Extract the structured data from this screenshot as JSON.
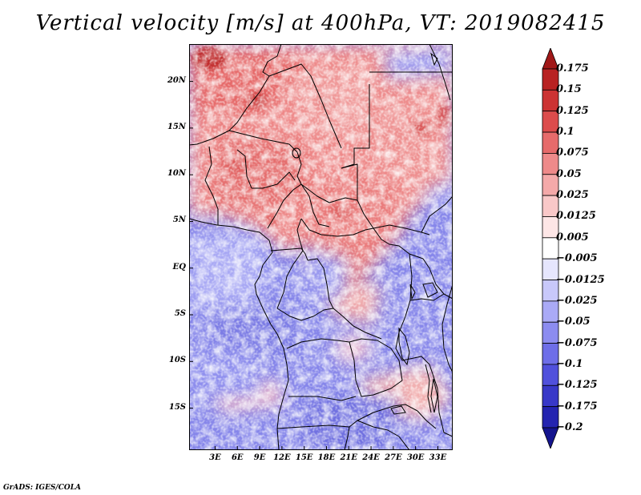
{
  "title": "Vertical velocity [m/s] at 400hPa, VT: 2019082415",
  "credit": "GrADS: IGES/COLA",
  "map": {
    "lon_range": [
      -0.5,
      35
    ],
    "lat_range": [
      -19.5,
      24
    ],
    "lat_labels": [
      {
        "lat": 20,
        "text": "20N"
      },
      {
        "lat": 15,
        "text": "15N"
      },
      {
        "lat": 10,
        "text": "10N"
      },
      {
        "lat": 5,
        "text": "5N"
      },
      {
        "lat": 0,
        "text": "EQ"
      },
      {
        "lat": -5,
        "text": "5S"
      },
      {
        "lat": -10,
        "text": "10S"
      },
      {
        "lat": -15,
        "text": "15S"
      }
    ],
    "lon_labels": [
      {
        "lon": 3,
        "text": "3E"
      },
      {
        "lon": 6,
        "text": "6E"
      },
      {
        "lon": 9,
        "text": "9E"
      },
      {
        "lon": 12,
        "text": "12E"
      },
      {
        "lon": 15,
        "text": "15E"
      },
      {
        "lon": 18,
        "text": "18E"
      },
      {
        "lon": 21,
        "text": "21E"
      },
      {
        "lon": 24,
        "text": "24E"
      },
      {
        "lon": 27,
        "text": "27E"
      },
      {
        "lon": 30,
        "text": "30E"
      },
      {
        "lon": 33,
        "text": "33E"
      }
    ]
  },
  "colorbar": {
    "labels": [
      "0.175",
      "0.15",
      "0.125",
      "0.1",
      "0.075",
      "0.05",
      "0.025",
      "0.0125",
      "0.005",
      "−0.005",
      "−0.0125",
      "−0.025",
      "−0.05",
      "−0.075",
      "−0.1",
      "−0.125",
      "−0.175",
      "−0.2"
    ],
    "colors": [
      "#a01818",
      "#b82222",
      "#cc3333",
      "#dc4c4c",
      "#e66b6b",
      "#ee8a8a",
      "#f4a9a9",
      "#f9c8c8",
      "#fde6e6",
      "#ffffff",
      "#e6e6fd",
      "#c8c8fa",
      "#aaaaf6",
      "#8c8cf0",
      "#6e6ee8",
      "#5050dc",
      "#3838c8",
      "#2424b0",
      "#14148e"
    ]
  },
  "colors": {
    "land_outline": "#000000",
    "frame": "#000000"
  }
}
